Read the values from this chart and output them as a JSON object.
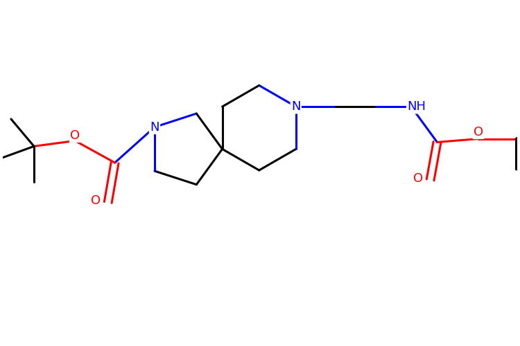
{
  "background_color": "#ffffff",
  "bond_color": "#000000",
  "n_color": "#0000ff",
  "o_color": "#ff0000",
  "bond_width": 2.2,
  "font_size": 13,
  "fig_width": 7.5,
  "fig_height": 5.0,
  "dpi": 100,
  "xlim": [
    0,
    7.5
  ],
  "ylim": [
    0,
    5.0
  ],
  "spiro_x": 3.2,
  "spiro_y": 2.85,
  "unit": 0.62
}
